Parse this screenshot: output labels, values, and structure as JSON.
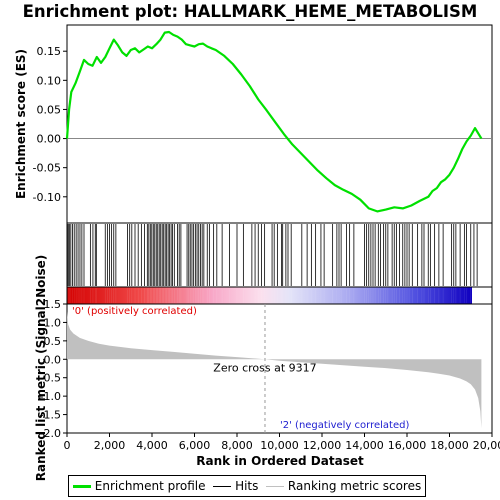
{
  "chart_data": {
    "type": "line",
    "title": "Enrichment plot: HALLMARK_HEME_METABOLISM",
    "xlabel": "Rank in Ordered Dataset",
    "xlim": [
      0,
      20000
    ],
    "x_ticks": [
      0,
      2000,
      4000,
      6000,
      8000,
      10000,
      12000,
      14000,
      16000,
      18000,
      20000
    ],
    "x_tick_labels": [
      "0",
      "2,000",
      "4,000",
      "6,000",
      "8,000",
      "10,000",
      "12,000",
      "14,000",
      "16,000",
      "18,000",
      "20,000"
    ],
    "n_genes": 19500,
    "es_panel": {
      "ylabel": "Enrichment score (ES)",
      "ylim": [
        -0.145,
        0.195
      ],
      "y_ticks": [
        0.15,
        0.1,
        0.05,
        0.0,
        -0.05,
        -0.1
      ],
      "y_tick_labels": [
        "0.15",
        "0.10",
        "0.05",
        "0.00",
        "-0.05",
        "-0.10"
      ],
      "series_color": "#00e000",
      "x": [
        0,
        100,
        200,
        400,
        600,
        800,
        1000,
        1200,
        1400,
        1600,
        1800,
        2000,
        2200,
        2400,
        2600,
        2800,
        3000,
        3200,
        3400,
        3600,
        3800,
        4000,
        4200,
        4400,
        4600,
        4800,
        5000,
        5200,
        5400,
        5600,
        5800,
        6000,
        6200,
        6400,
        6600,
        6800,
        7000,
        7400,
        7800,
        8200,
        8600,
        9000,
        9400,
        9800,
        10200,
        10600,
        11000,
        11400,
        11800,
        12200,
        12600,
        13000,
        13400,
        13800,
        14200,
        14600,
        15000,
        15400,
        15800,
        16200,
        16600,
        17000,
        17200,
        17400,
        17600,
        17800,
        18000,
        18200,
        18400,
        18600,
        18800,
        19000,
        19200,
        19500
      ],
      "y": [
        0.0,
        0.05,
        0.08,
        0.095,
        0.115,
        0.135,
        0.128,
        0.125,
        0.14,
        0.13,
        0.14,
        0.155,
        0.17,
        0.16,
        0.148,
        0.142,
        0.152,
        0.155,
        0.148,
        0.153,
        0.158,
        0.155,
        0.162,
        0.17,
        0.182,
        0.183,
        0.178,
        0.175,
        0.17,
        0.162,
        0.16,
        0.158,
        0.162,
        0.163,
        0.158,
        0.155,
        0.152,
        0.142,
        0.128,
        0.11,
        0.09,
        0.067,
        0.048,
        0.028,
        0.008,
        -0.01,
        -0.025,
        -0.04,
        -0.055,
        -0.068,
        -0.08,
        -0.088,
        -0.095,
        -0.105,
        -0.12,
        -0.125,
        -0.122,
        -0.118,
        -0.12,
        -0.115,
        -0.107,
        -0.1,
        -0.09,
        -0.085,
        -0.075,
        -0.07,
        -0.062,
        -0.05,
        -0.035,
        -0.018,
        -0.005,
        0.005,
        0.018,
        0.0
      ]
    },
    "ranked_panel": {
      "ylabel": "Ranked list metric (Signal2Noise)",
      "ylim": [
        -2.0,
        1.5
      ],
      "y_ticks": [
        1.5,
        1.0,
        0.5,
        0.0,
        -0.5,
        -1.0,
        -1.5,
        -2.0
      ],
      "y_tick_labels": [
        "1.5",
        "1.0",
        "0.5",
        "0.0",
        "-0.5",
        "-1.0",
        "-1.5",
        "-2.0"
      ],
      "zero_cross": 9317,
      "zero_cross_label": "Zero cross at 9317",
      "positive_label": "'0' (positively correlated)",
      "negative_label": "'2' (negatively correlated)",
      "x": [
        0,
        50,
        150,
        300,
        600,
        1000,
        1500,
        2000,
        3000,
        4000,
        5000,
        6000,
        7000,
        8000,
        9317,
        10000,
        11000,
        12000,
        13000,
        14000,
        15000,
        16000,
        17000,
        17500,
        18000,
        18500,
        18800,
        19000,
        19200,
        19350,
        19450,
        19500
      ],
      "y": [
        1.3,
        0.95,
        0.8,
        0.7,
        0.58,
        0.5,
        0.42,
        0.37,
        0.3,
        0.25,
        0.2,
        0.15,
        0.1,
        0.06,
        0.0,
        -0.04,
        -0.08,
        -0.12,
        -0.16,
        -0.2,
        -0.24,
        -0.29,
        -0.35,
        -0.39,
        -0.44,
        -0.52,
        -0.6,
        -0.68,
        -0.82,
        -1.05,
        -1.4,
        -1.87
      ]
    },
    "hits": [
      20,
      60,
      110,
      180,
      260,
      340,
      430,
      520,
      610,
      700,
      800,
      1100,
      1220,
      1330,
      1380,
      1800,
      1900,
      2000,
      2100,
      2200,
      2300,
      2850,
      2950,
      3050,
      3200,
      3350,
      3500,
      3650,
      3780,
      3850,
      3920,
      3990,
      4060,
      4130,
      4200,
      4270,
      4340,
      4410,
      4480,
      4550,
      4620,
      4690,
      4760,
      4830,
      4900,
      4970,
      5050,
      5200,
      5280,
      5360,
      5650,
      5730,
      5800,
      5880,
      5960,
      6040,
      6120,
      6200,
      6280,
      6360,
      6440,
      6600,
      6700,
      6900,
      7050,
      7300,
      7650,
      8000,
      8300,
      8700,
      8850,
      9000,
      9150,
      9300,
      9650,
      9750,
      9900,
      10100,
      10150,
      10300,
      10400,
      10550,
      11050,
      11300,
      11500,
      11700,
      11950,
      12100,
      12500,
      12700,
      12800,
      12900,
      13150,
      13300,
      13500,
      14000,
      14100,
      14200,
      14300,
      14400,
      14500,
      14650,
      14750,
      14900,
      15000,
      15100,
      15300,
      15400,
      15500,
      15650,
      15800,
      15900,
      16000,
      16100,
      16250,
      16500,
      16700,
      16800,
      17000,
      17100,
      17300,
      17500,
      17700,
      18100,
      18200,
      18300,
      18500,
      18700,
      18800,
      19000,
      19150,
      19300
    ],
    "legend": {
      "items": [
        "Enrichment profile",
        "Hits",
        "Ranking metric scores"
      ],
      "colors": [
        "#00e000",
        "#000000",
        "#c0c0c0"
      ]
    }
  }
}
